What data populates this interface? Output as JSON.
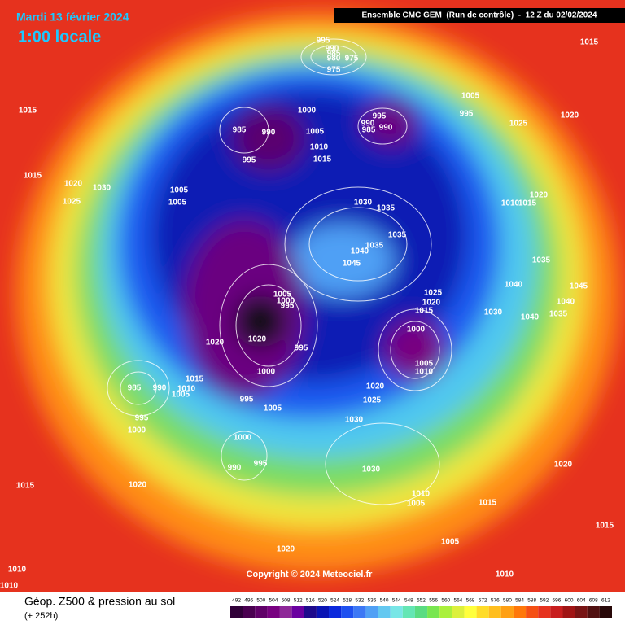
{
  "header": {
    "date": "Mardi 13 février 2024",
    "time": "1:00 locale",
    "model": "Ensemble CMC GEM  (Run de contrôle)  -  12 Z du 02/02/2024"
  },
  "isobar_labels": [
    995,
    990,
    985,
    980,
    975,
    975,
    1015,
    1005,
    995,
    1025,
    1020,
    1015,
    985,
    990,
    1000,
    1005,
    995,
    990,
    985,
    990,
    1010,
    1015,
    995,
    1015,
    1020,
    1030,
    1025,
    1005,
    1005,
    1030,
    1035,
    1035,
    1035,
    1040,
    1045,
    1010,
    1015,
    1020,
    1035,
    1045,
    1040,
    1040,
    1035,
    1030,
    1040,
    1005,
    1000,
    995,
    1025,
    1020,
    1015,
    1000,
    1005,
    1010,
    1020,
    1020,
    995,
    1000,
    985,
    990,
    1010,
    1015,
    1005,
    995,
    1000,
    1020,
    1025,
    995,
    1005,
    1030,
    1000,
    990,
    995,
    1030,
    1020,
    1015,
    1020,
    1010,
    1005,
    1015,
    1005,
    1015,
    1020,
    1010,
    1010,
    1010
  ],
  "copyright": "Copyright © 2024 Meteociel.fr",
  "footer": {
    "title": "Géop. Z500 & pression au sol",
    "lead": "(+ 252h)"
  },
  "colorbar": {
    "ticks": [
      492,
      496,
      500,
      504,
      508,
      512,
      516,
      520,
      524,
      528,
      532,
      536,
      540,
      544,
      548,
      552,
      556,
      560,
      564,
      568,
      572,
      576,
      580,
      584,
      588,
      592,
      596,
      600,
      604,
      608,
      612
    ],
    "colors": [
      "#300038",
      "#4a0050",
      "#600068",
      "#780080",
      "#8e2898",
      "#6a00a0",
      "#1e0a8c",
      "#0a14b4",
      "#0a28dc",
      "#1e50f0",
      "#3c78f5",
      "#50a0f5",
      "#64c8f0",
      "#78e6e6",
      "#64e6b4",
      "#5adc82",
      "#78e650",
      "#aaf03c",
      "#dcf03c",
      "#ffff3c",
      "#ffdc28",
      "#ffbe1e",
      "#ffa014",
      "#ff780a",
      "#f55014",
      "#e6321e",
      "#c81e1e",
      "#a01414",
      "#781414",
      "#501010",
      "#280808"
    ]
  }
}
